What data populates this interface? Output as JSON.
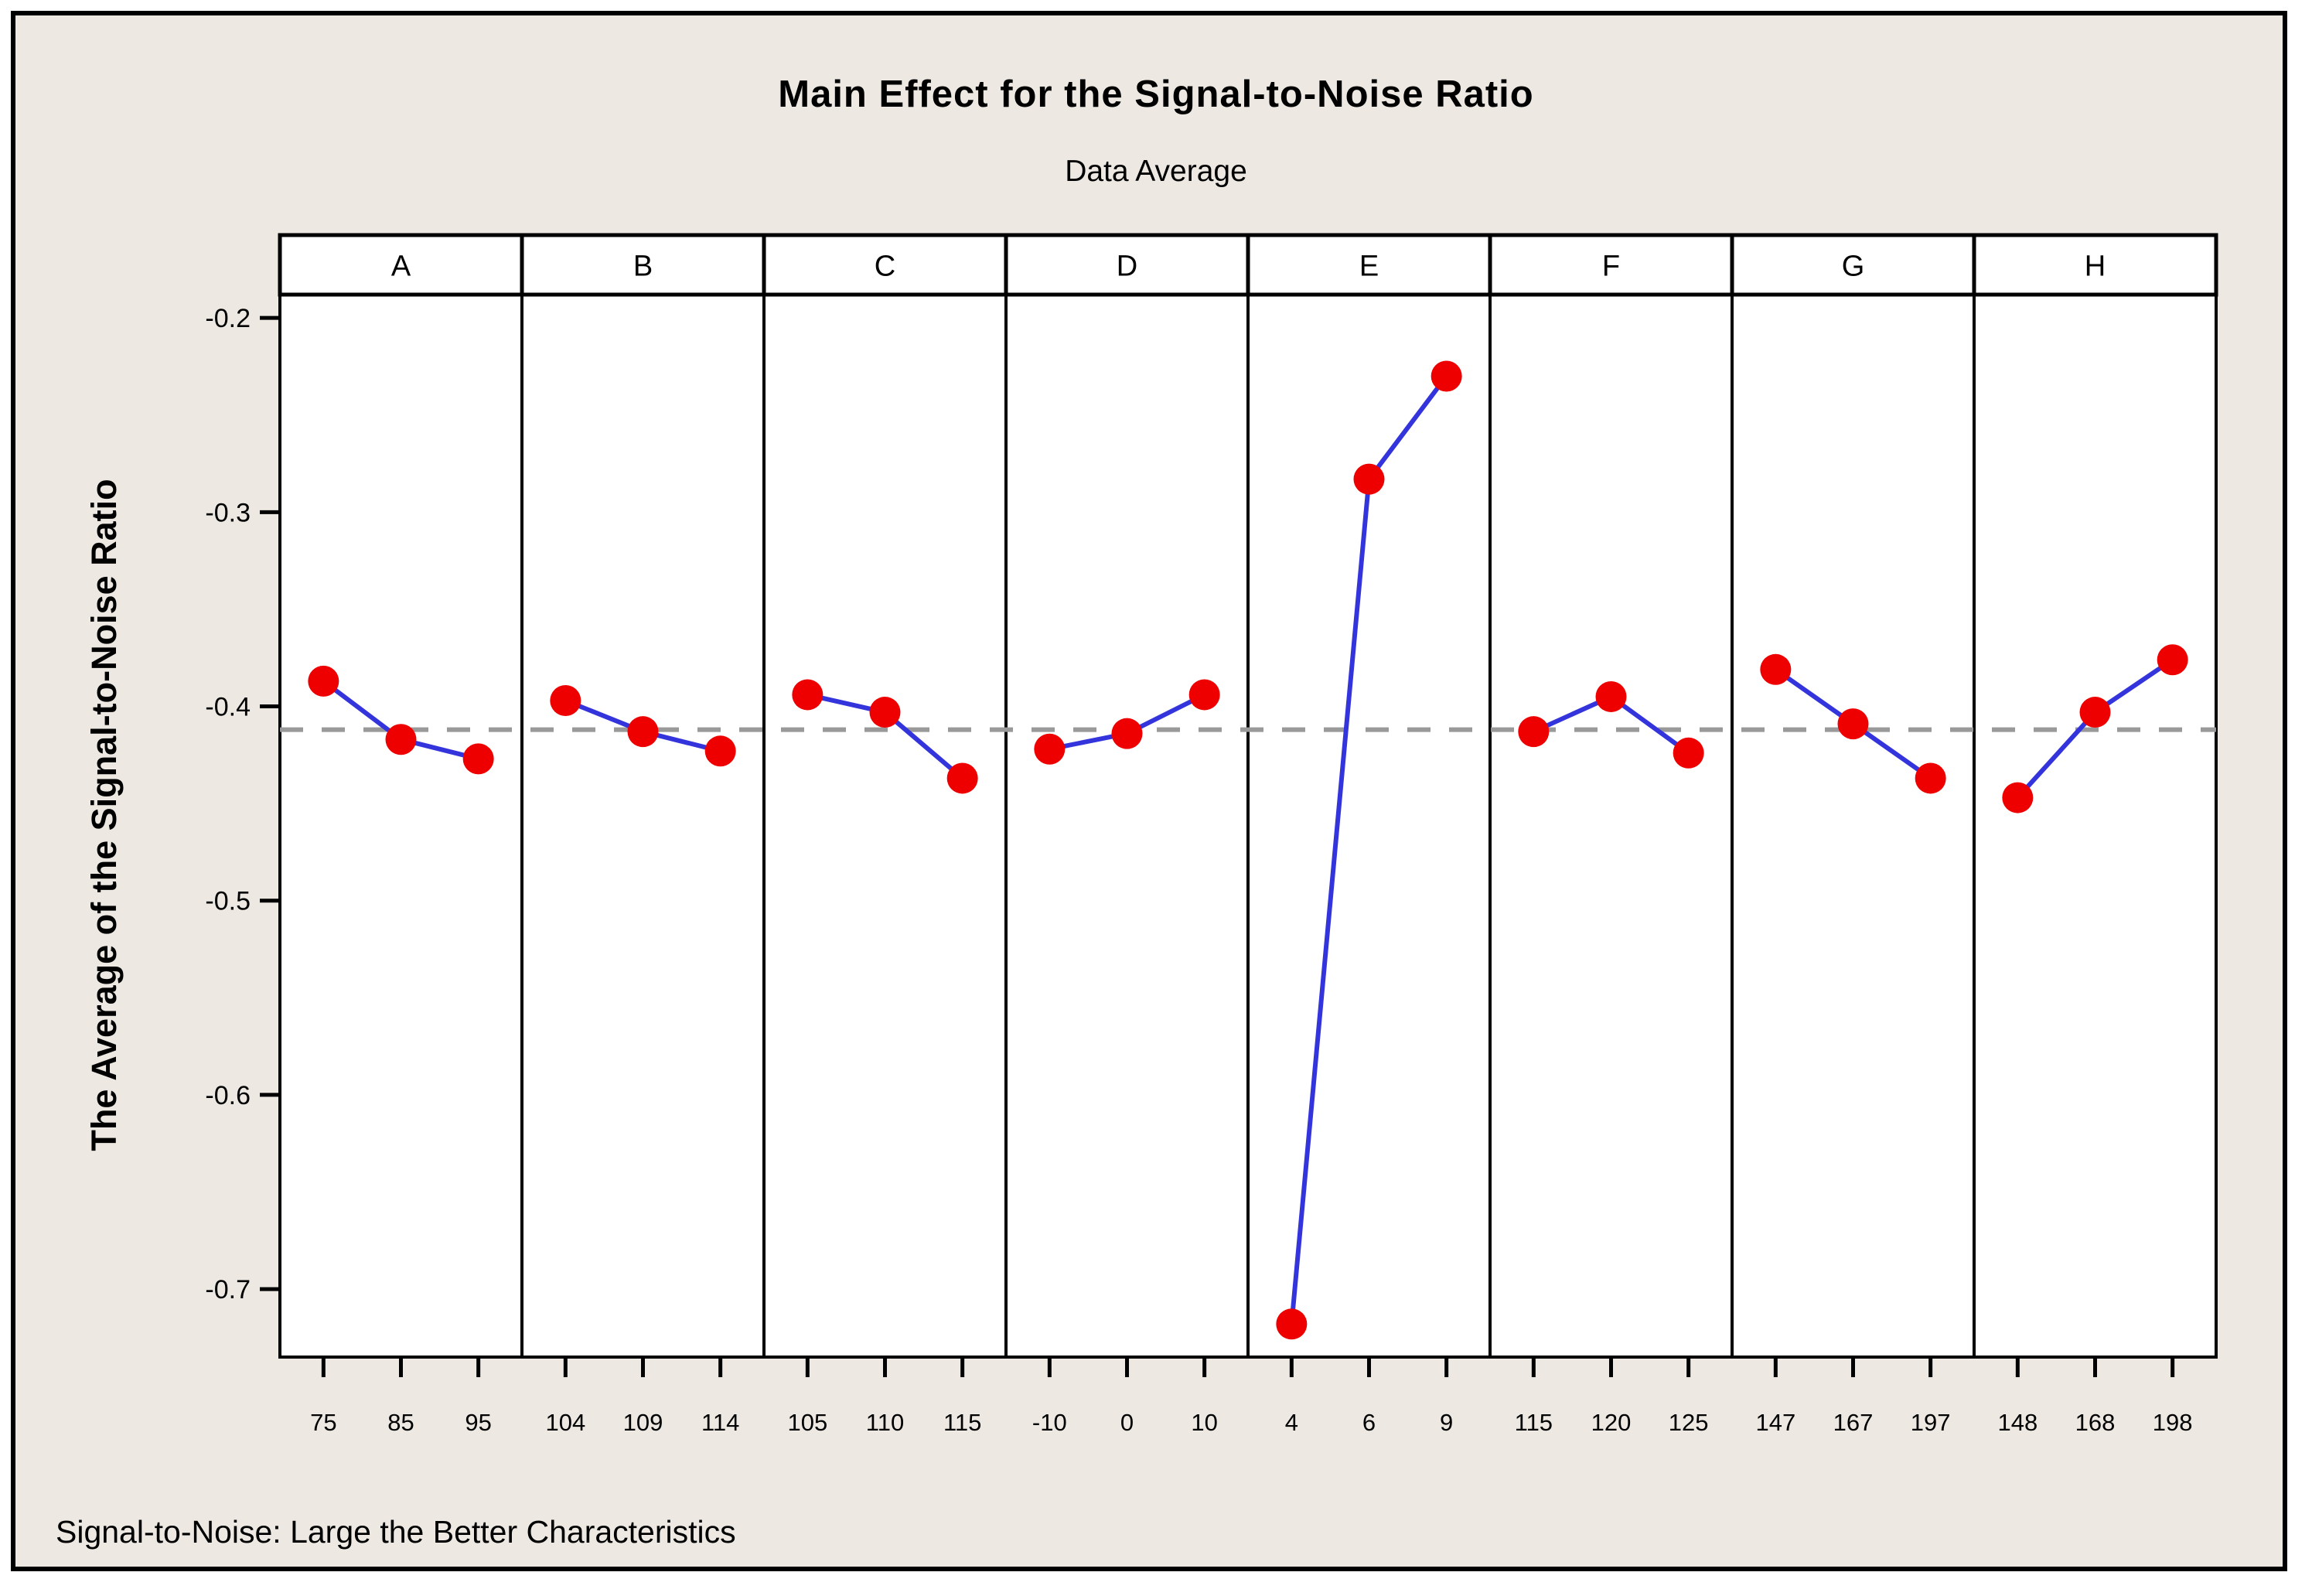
{
  "title": "Main Effect for the Signal-to-Noise Ratio",
  "subtitle": "Data Average",
  "footnote": "Signal-to-Noise: Large the Better Characteristics",
  "chart_data": {
    "type": "line",
    "title": "Main Effect for the Signal-to-Noise Ratio",
    "subtitle": "Data Average",
    "ylabel": "The Average of the Signal-to-Noise Ratio",
    "xlabel": "",
    "ylim": [
      -0.735,
      -0.188
    ],
    "yticks": [
      -0.2,
      -0.3,
      -0.4,
      -0.5,
      -0.6,
      -0.7
    ],
    "ytick_labels": [
      "-0.2",
      "-0.3",
      "-0.4",
      "-0.5",
      "-0.6",
      "-0.7"
    ],
    "reference_line_mean": -0.412,
    "grid": false,
    "legend_position": "none",
    "panels": [
      {
        "factor": "A",
        "levels": [
          "75",
          "85",
          "95"
        ],
        "values": [
          -0.387,
          -0.417,
          -0.427
        ]
      },
      {
        "factor": "B",
        "levels": [
          "104",
          "109",
          "114"
        ],
        "values": [
          -0.397,
          -0.413,
          -0.423
        ]
      },
      {
        "factor": "C",
        "levels": [
          "105",
          "110",
          "115"
        ],
        "values": [
          -0.394,
          -0.403,
          -0.437
        ]
      },
      {
        "factor": "D",
        "levels": [
          "-10",
          "0",
          "10"
        ],
        "values": [
          -0.422,
          -0.414,
          -0.394
        ]
      },
      {
        "factor": "E",
        "levels": [
          "4",
          "6",
          "9"
        ],
        "values": [
          -0.718,
          -0.283,
          -0.23
        ]
      },
      {
        "factor": "F",
        "levels": [
          "115",
          "120",
          "125"
        ],
        "values": [
          -0.413,
          -0.395,
          -0.424
        ]
      },
      {
        "factor": "G",
        "levels": [
          "147",
          "167",
          "197"
        ],
        "values": [
          -0.381,
          -0.409,
          -0.437
        ]
      },
      {
        "factor": "H",
        "levels": [
          "148",
          "168",
          "198"
        ],
        "values": [
          -0.447,
          -0.403,
          -0.376
        ]
      }
    ],
    "colors": {
      "background": "#EDE9E2",
      "panel_background": "#FFFFFF",
      "frame": "#000000",
      "data_line": "#3434DD",
      "data_point": "#EE0000",
      "reference_line": "#999999",
      "text": "#000000"
    }
  }
}
